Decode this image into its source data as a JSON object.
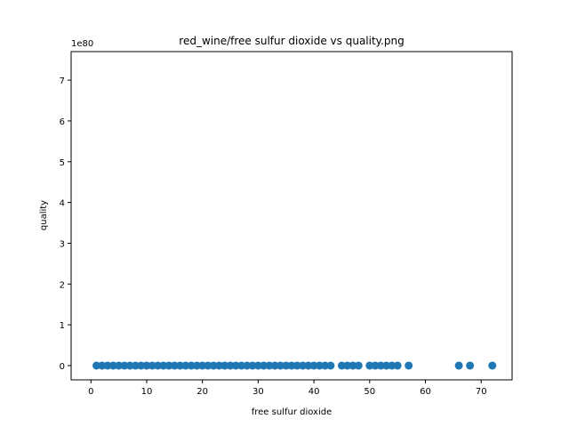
{
  "chart_data": {
    "type": "scatter",
    "title": "red_wine/free sulfur dioxide vs quality.png",
    "xlabel": "free sulfur dioxide",
    "ylabel": "quality",
    "y_offset_label": "1e80",
    "xlim": [
      -3.55,
      75.55
    ],
    "ylim": [
      -0.35,
      7.7
    ],
    "xticks": [
      0,
      10,
      20,
      30,
      40,
      50,
      60,
      70
    ],
    "yticks": [
      0,
      1,
      2,
      3,
      4,
      5,
      6,
      7
    ],
    "xtick_labels": [
      "0",
      "10",
      "20",
      "30",
      "40",
      "50",
      "60",
      "70"
    ],
    "ytick_labels": [
      "0",
      "1",
      "2",
      "3",
      "4",
      "5",
      "6",
      "7"
    ],
    "grid": false,
    "marker_color": "#1f77b4",
    "series": [
      {
        "x": [
          1,
          2,
          3,
          4,
          5,
          6,
          7,
          8,
          9,
          10,
          11,
          12,
          13,
          14,
          15,
          16,
          17,
          18,
          19,
          20,
          21,
          22,
          23,
          24,
          25,
          26,
          27,
          28,
          29,
          30,
          31,
          32,
          33,
          34,
          35,
          36,
          37,
          38,
          39,
          40,
          41,
          42,
          43,
          45,
          46,
          47,
          48,
          50,
          51,
          52,
          53,
          54,
          55,
          57,
          66,
          68,
          72
        ],
        "y": [
          0,
          0,
          0,
          0,
          0,
          0,
          0,
          0,
          0,
          0,
          0,
          0,
          0,
          0,
          0,
          0,
          0,
          0,
          0,
          0,
          0,
          0,
          0,
          0,
          0,
          0,
          0,
          0,
          0,
          0,
          0,
          0,
          0,
          0,
          0,
          0,
          0,
          0,
          0,
          0,
          0,
          0,
          0,
          0,
          0,
          0,
          0,
          0,
          0,
          0,
          0,
          0,
          0,
          0,
          0,
          0,
          0
        ]
      }
    ]
  }
}
